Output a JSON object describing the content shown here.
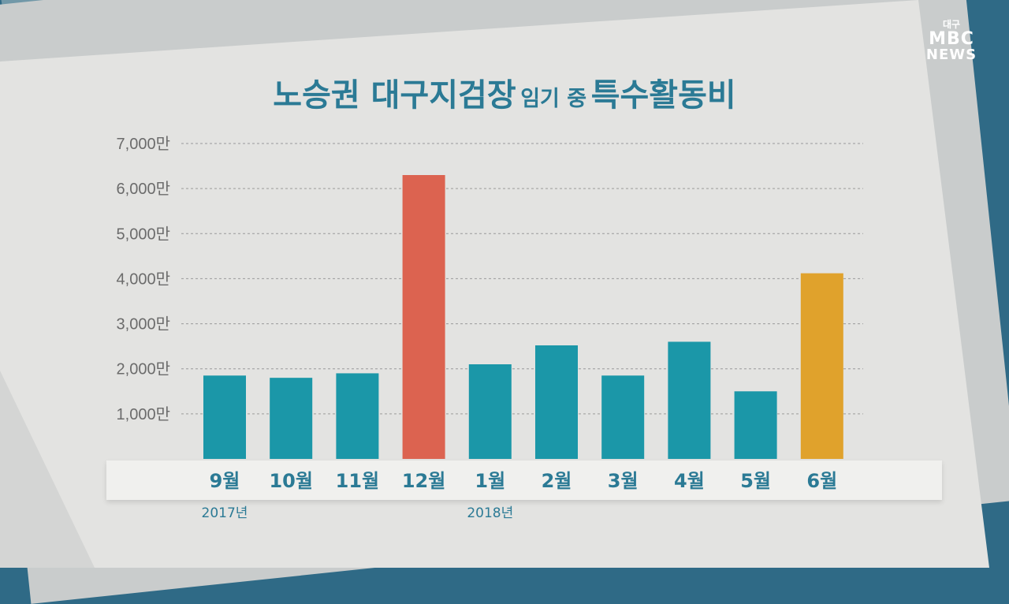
{
  "title": {
    "part1": "노승권 대구지검장",
    "part2": "임기 중",
    "part3": "특수활동비"
  },
  "logo": {
    "region": "대구",
    "brand": "MBC",
    "news": "NEWS"
  },
  "colors": {
    "default": "#1b97a8",
    "peak": "#dc6350",
    "latest": "#e0a22c"
  },
  "chart_data": {
    "type": "bar",
    "categories": [
      "9월",
      "10월",
      "11월",
      "12월",
      "1월",
      "2월",
      "3월",
      "4월",
      "5월",
      "6월"
    ],
    "values": [
      1850,
      1800,
      1900,
      6300,
      2100,
      2520,
      1850,
      2600,
      1500,
      4120
    ],
    "bar_colors": [
      "default",
      "default",
      "default",
      "peak",
      "default",
      "default",
      "default",
      "default",
      "default",
      "latest"
    ],
    "y_ticks": [
      1000,
      2000,
      3000,
      4000,
      5000,
      6000,
      7000
    ],
    "y_tick_labels": [
      "1,000만",
      "2,000만",
      "3,000만",
      "4,000만",
      "5,000만",
      "6,000만",
      "7,000만"
    ],
    "ylim": [
      0,
      7000
    ],
    "grid": true,
    "year_labels": [
      {
        "label": "2017년",
        "category_index": 0
      },
      {
        "label": "2018년",
        "category_index": 4
      }
    ]
  }
}
